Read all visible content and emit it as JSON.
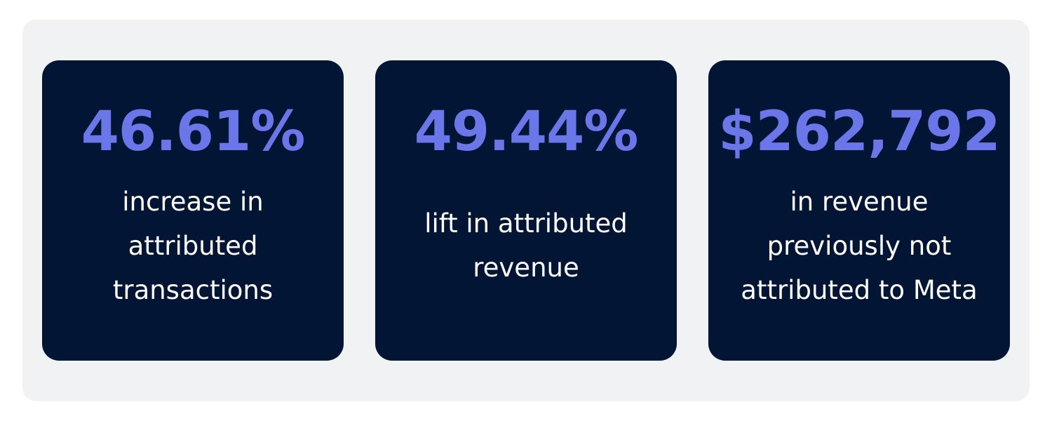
{
  "stats": [
    {
      "value": "46.61%",
      "description_lines": [
        "increase in",
        "attributed",
        "transactions"
      ]
    },
    {
      "value": "49.44%",
      "description_lines": [
        "lift in attributed",
        "revenue"
      ]
    },
    {
      "value": "$262,792",
      "description_lines": [
        "in revenue",
        "previously not",
        "attributed to Meta"
      ]
    }
  ]
}
